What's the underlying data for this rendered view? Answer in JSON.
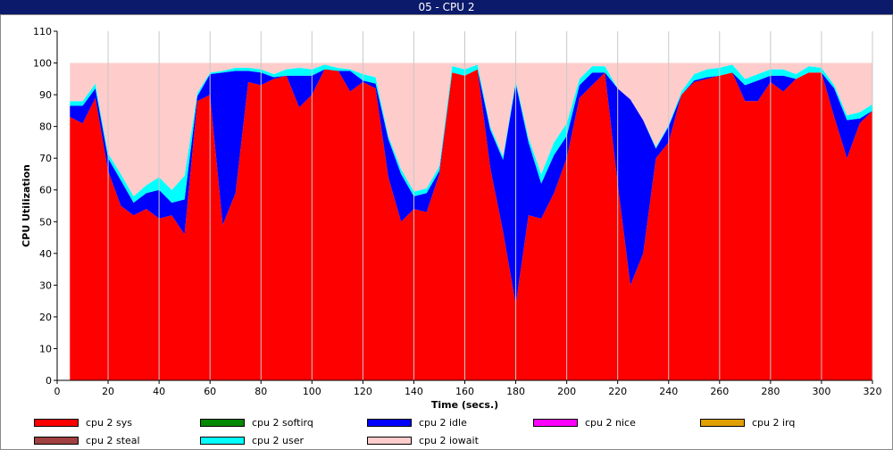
{
  "window": {
    "title": "05 - CPU 2"
  },
  "chart_data": {
    "type": "area",
    "stacked": true,
    "xlabel": "Time (secs.)",
    "ylabel": "CPU Utilization",
    "xlim": [
      0,
      320
    ],
    "ylim": [
      0,
      110
    ],
    "x_ticks": [
      0,
      20,
      40,
      60,
      80,
      100,
      120,
      140,
      160,
      180,
      200,
      220,
      240,
      260,
      280,
      300,
      320
    ],
    "y_ticks": [
      0,
      10,
      20,
      30,
      40,
      50,
      60,
      70,
      80,
      90,
      100,
      110
    ],
    "grid": {
      "vertical": true,
      "horizontal": false
    },
    "legend_position": "bottom",
    "x": [
      5,
      10,
      15,
      20,
      25,
      30,
      35,
      40,
      45,
      50,
      55,
      60,
      65,
      70,
      75,
      80,
      85,
      90,
      95,
      100,
      105,
      110,
      115,
      120,
      125,
      130,
      135,
      140,
      145,
      150,
      155,
      160,
      165,
      170,
      175,
      180,
      185,
      190,
      195,
      200,
      205,
      210,
      215,
      220,
      225,
      230,
      235,
      240,
      245,
      250,
      255,
      260,
      265,
      270,
      275,
      280,
      285,
      290,
      295,
      300,
      305,
      310,
      315,
      320
    ],
    "series": [
      {
        "name": "cpu 2 sys",
        "color": "#ff0000",
        "values": [
          83,
          81,
          89,
          66,
          55,
          52,
          54,
          51,
          52,
          46,
          88,
          90,
          49,
          59,
          94,
          93,
          95,
          96,
          86,
          90,
          98,
          98,
          91,
          94,
          92,
          64,
          50,
          54,
          53,
          65,
          97,
          96,
          98,
          67,
          47,
          24,
          52,
          51,
          59,
          70,
          89,
          93,
          97,
          62,
          30,
          40,
          70,
          75,
          90,
          94,
          95,
          96,
          97,
          88,
          88,
          94,
          91,
          95,
          97,
          97,
          83,
          70,
          81,
          85
        ]
      },
      {
        "name": "cpu 2 softirq",
        "color": "#008800",
        "values": [
          0,
          0,
          0,
          0,
          0,
          0,
          0,
          0,
          0,
          0,
          0,
          0,
          0,
          0,
          0,
          0,
          0,
          0,
          0,
          0,
          0,
          0,
          0,
          0,
          0,
          0,
          0,
          0,
          0,
          0,
          0,
          0,
          0,
          0,
          0,
          0,
          0,
          0,
          0,
          0,
          0,
          0,
          0,
          0,
          0,
          0,
          0,
          0,
          0,
          0,
          0,
          0,
          0,
          0,
          0,
          0,
          0,
          0,
          0,
          0,
          0,
          0,
          0,
          0
        ]
      },
      {
        "name": "cpu 2 idle",
        "color": "#0000ff",
        "values": [
          3.5,
          5.5,
          3,
          4,
          8,
          4,
          5,
          9,
          4,
          11,
          1.5,
          6.5,
          48,
          38.5,
          3.5,
          4,
          0.5,
          0,
          10,
          6,
          0,
          -0.5,
          6.5,
          0.5,
          1.5,
          12,
          15,
          4,
          6,
          1,
          0,
          0,
          0,
          12,
          22.5,
          69.5,
          23,
          11,
          12,
          7,
          4,
          4,
          0,
          30,
          58.5,
          42,
          3,
          5,
          0,
          0.5,
          0.5,
          0,
          0,
          5,
          6.5,
          2,
          5,
          0,
          0,
          0,
          9,
          12,
          1.5,
          0
        ]
      },
      {
        "name": "cpu 2 nice",
        "color": "#ff00ff",
        "values": [
          0,
          0,
          0,
          0,
          0,
          0,
          0,
          0,
          0,
          0,
          0,
          0,
          0,
          0,
          0,
          0,
          0,
          0,
          0,
          0,
          0,
          0,
          0,
          0,
          0,
          0,
          0,
          0,
          0,
          0,
          0,
          0,
          0,
          0,
          0,
          0,
          0,
          0,
          0,
          0,
          0,
          0,
          0,
          0,
          0,
          0,
          0,
          0,
          0,
          0,
          0,
          0,
          0,
          0,
          0,
          0,
          0,
          0,
          0,
          0,
          0,
          0,
          0,
          0
        ]
      },
      {
        "name": "cpu 2 irq",
        "color": "#e0a000",
        "values": [
          0,
          0,
          0,
          0,
          0,
          0,
          0,
          0,
          0,
          0,
          0,
          0,
          0,
          0,
          0,
          0,
          0,
          0,
          0,
          0,
          0,
          0,
          0,
          0,
          0,
          0,
          0,
          0,
          0,
          0,
          0,
          0,
          0,
          0,
          0,
          0,
          0,
          0,
          0,
          0,
          0,
          0,
          0,
          0,
          0,
          0,
          0,
          0,
          0,
          0,
          0,
          0,
          0,
          0,
          0,
          0,
          0,
          0,
          0,
          0,
          0,
          0,
          0,
          0
        ]
      },
      {
        "name": "cpu 2 steal",
        "color": "#a04040",
        "values": [
          0,
          0,
          0,
          0,
          0,
          0,
          0,
          0,
          0,
          0,
          0,
          0,
          0,
          0,
          0,
          0,
          0,
          0,
          0,
          0,
          0,
          0,
          0,
          0,
          0,
          0,
          0,
          0,
          0,
          0,
          0,
          0,
          0,
          0,
          0,
          0,
          0,
          0,
          0,
          0,
          0,
          0,
          0,
          0,
          0,
          0,
          0,
          0,
          0,
          0,
          0,
          0,
          0,
          0,
          0,
          0,
          0,
          0,
          0,
          0,
          0,
          0,
          0,
          0
        ]
      },
      {
        "name": "cpu 2 user",
        "color": "#00ffff",
        "values": [
          1.5,
          1.5,
          1.5,
          1.5,
          2,
          2,
          2.5,
          4,
          4,
          7.5,
          1,
          0.5,
          0.5,
          1,
          1,
          1,
          1,
          2,
          2.5,
          2,
          1.5,
          1,
          0.5,
          2,
          2,
          1,
          1.5,
          1.5,
          1.5,
          1.5,
          2,
          2,
          1.5,
          1,
          1,
          1,
          1.5,
          3,
          4,
          4,
          2,
          2,
          2,
          0,
          0,
          0,
          0.5,
          0.5,
          1,
          2,
          2.5,
          2.5,
          2.5,
          2,
          2,
          2,
          2,
          1.5,
          2,
          1.5,
          1,
          1.5,
          2,
          2
        ]
      },
      {
        "name": "cpu 2 iowait",
        "color": "#ffcccc",
        "values": [
          12,
          12,
          6.5,
          28.5,
          35,
          42,
          38.5,
          36,
          40,
          35.5,
          9.5,
          3,
          2.5,
          1.5,
          1.5,
          2,
          3.5,
          2,
          1.5,
          2,
          0.5,
          1.5,
          2,
          3.5,
          4.5,
          23,
          33.5,
          40.5,
          39.5,
          32.5,
          1,
          2,
          0.5,
          20,
          29.5,
          5.5,
          23.5,
          35,
          25,
          19,
          5,
          1,
          1,
          8,
          11.5,
          18,
          26.5,
          19.5,
          9,
          3.5,
          2,
          1.5,
          0.5,
          5,
          3.5,
          2,
          2,
          3.5,
          1,
          1.5,
          7,
          16.5,
          15.5,
          13
        ]
      }
    ]
  }
}
